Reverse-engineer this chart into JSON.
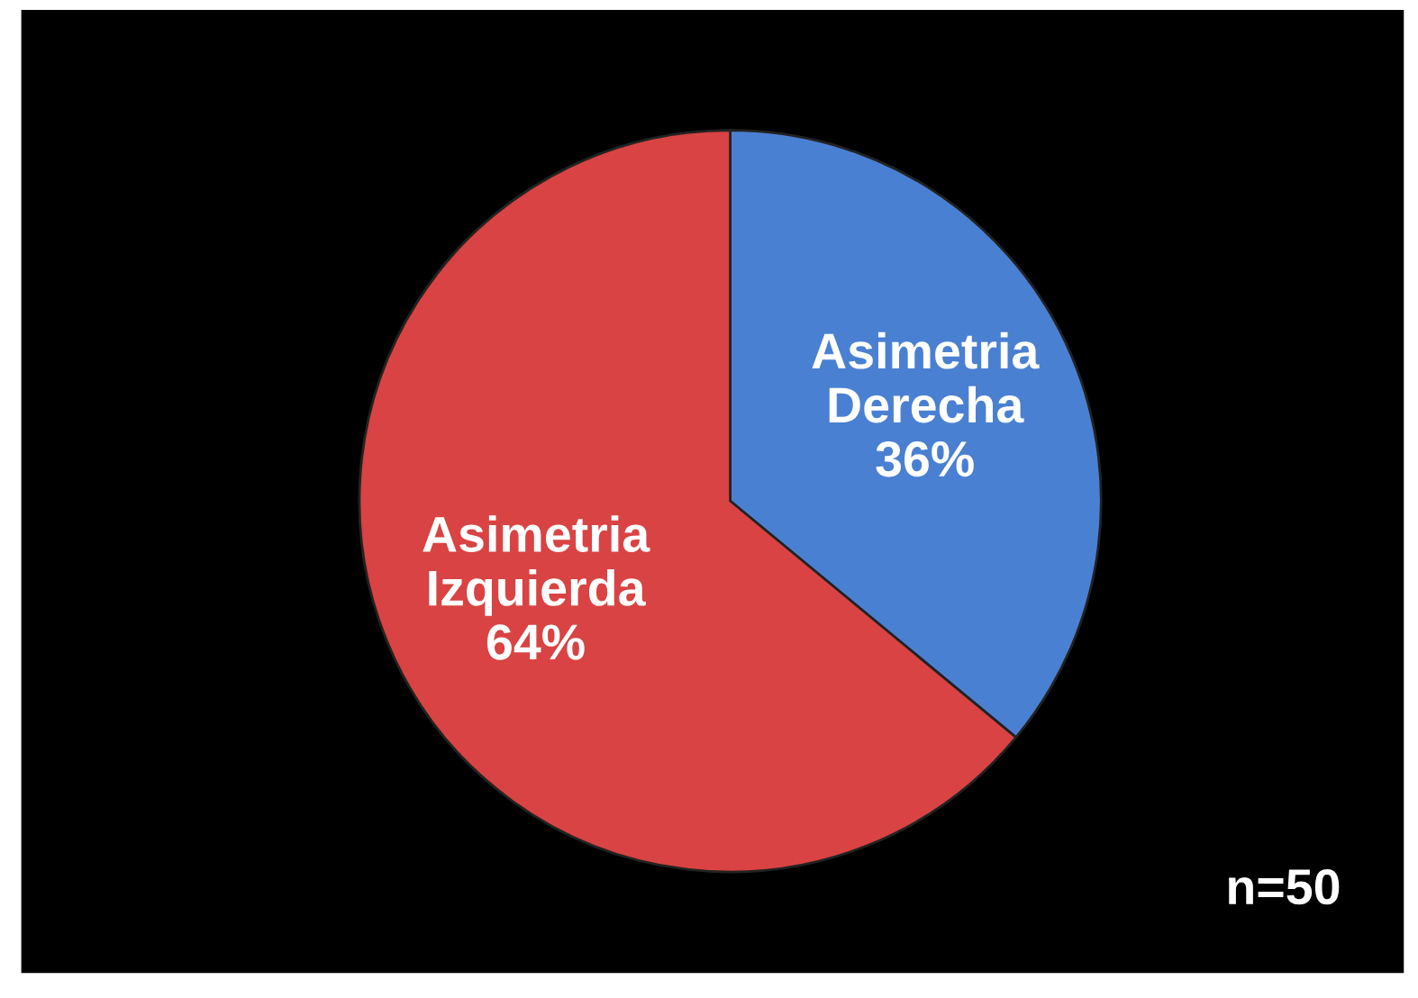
{
  "chart_data": {
    "type": "pie",
    "categories": [
      "Asimetria Derecha",
      "Asimetria Izquierda"
    ],
    "values": [
      36,
      64
    ],
    "value_labels": [
      "36%",
      "64%"
    ],
    "colors": [
      "#4a80d2",
      "#d94343"
    ],
    "annotations": [
      "n=50"
    ]
  }
}
